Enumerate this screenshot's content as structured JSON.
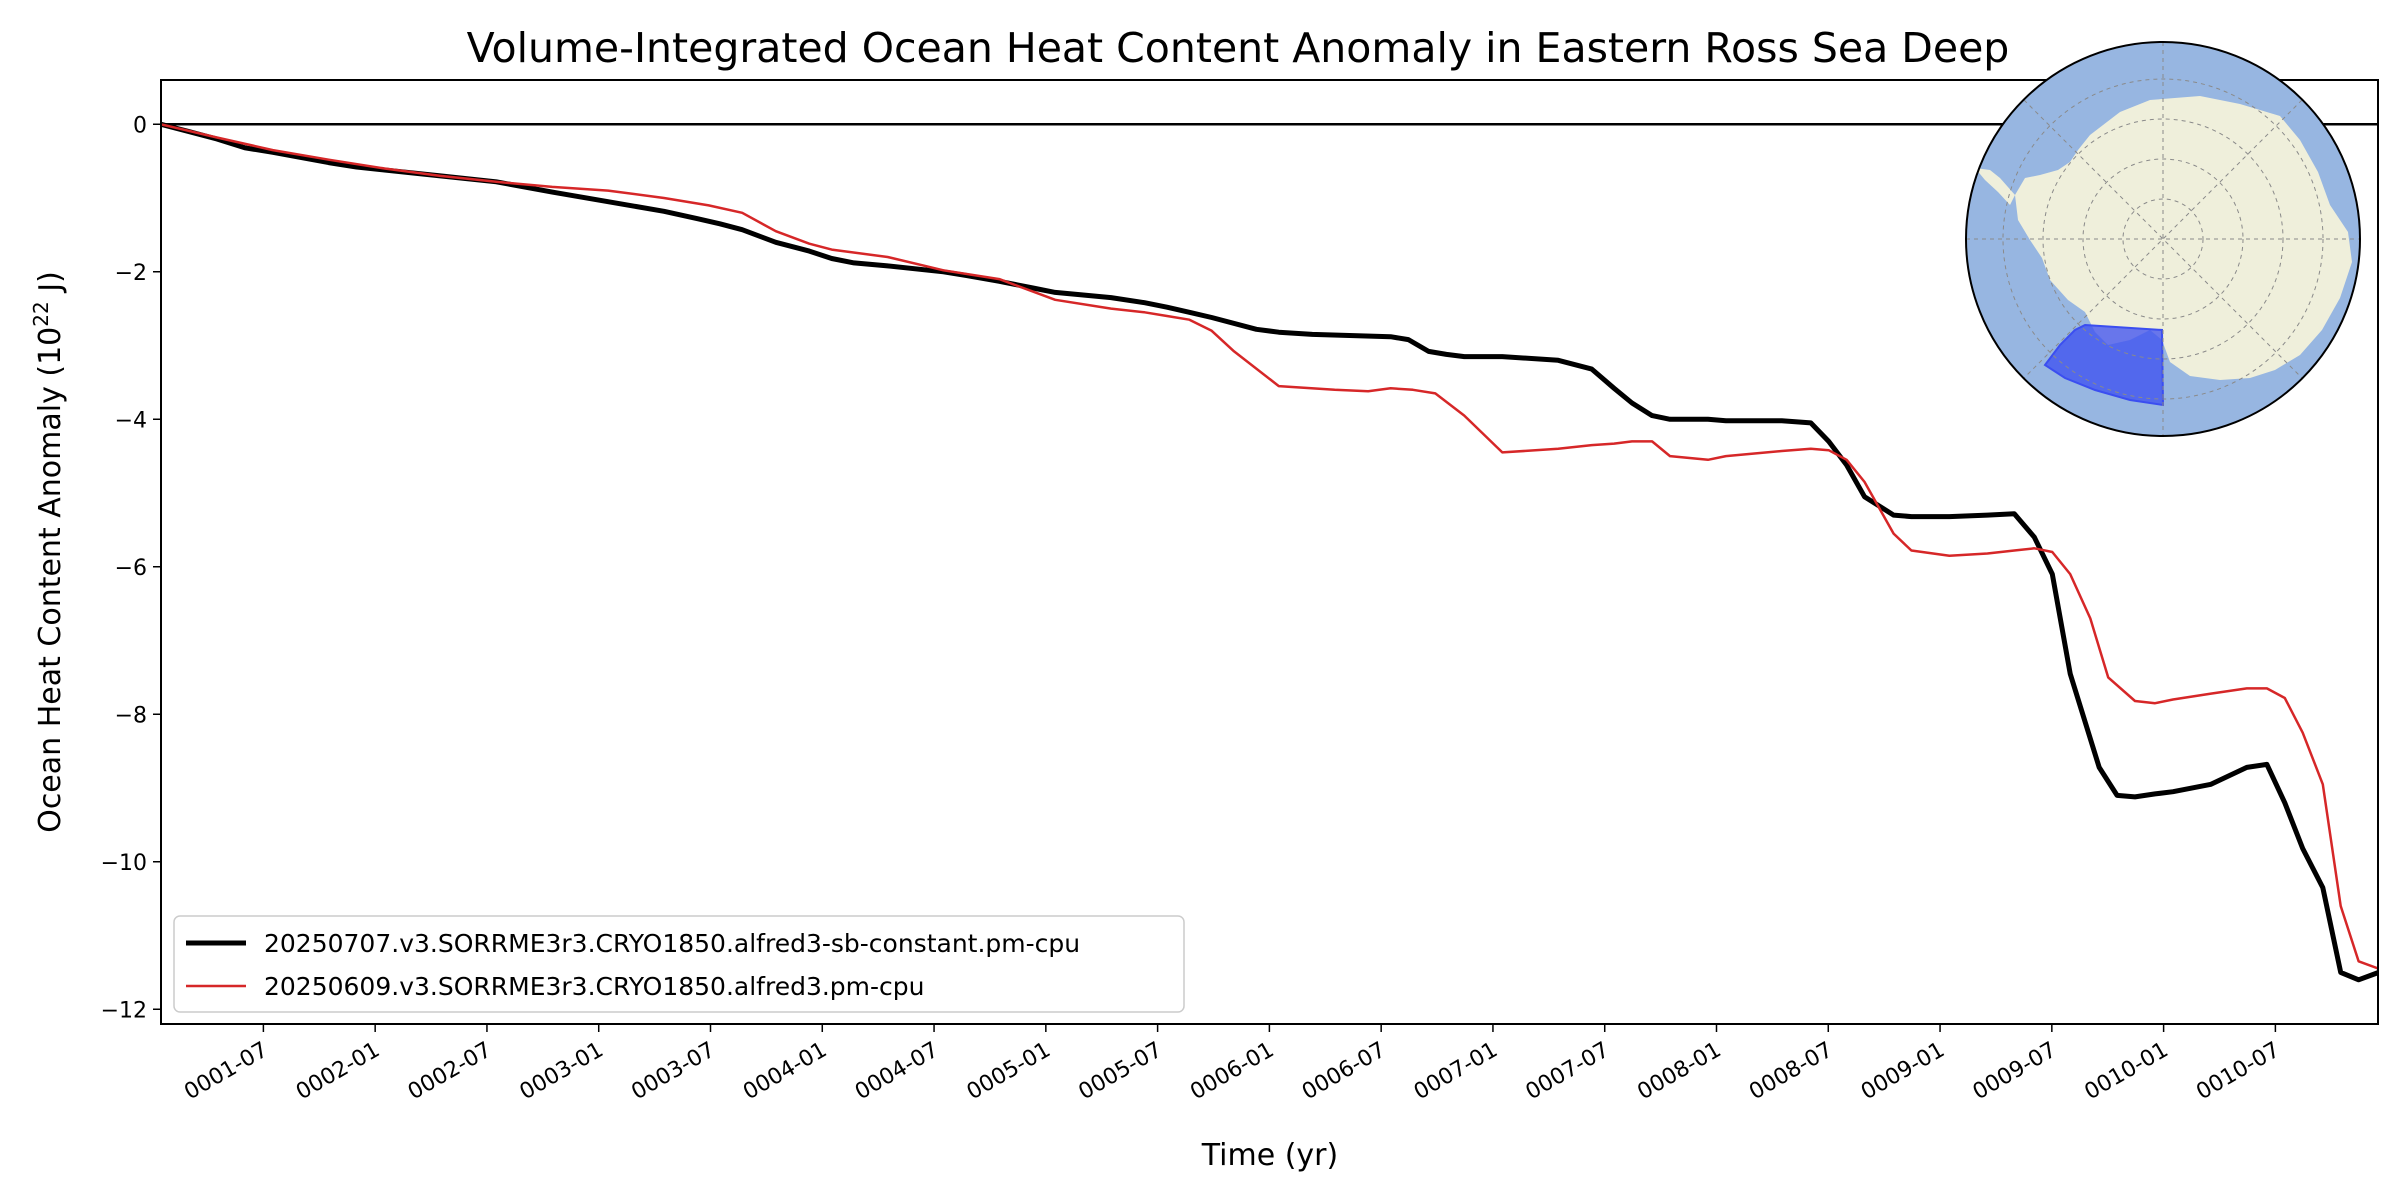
{
  "chart_data": {
    "type": "line",
    "title": "Volume-Integrated Ocean Heat Content Anomaly in Eastern Ross Sea Deep",
    "xlabel": "Time (yr)",
    "ylabel_prefix": "Ocean Heat Content Anomaly (10",
    "ylabel_exponent": "22",
    "ylabel_suffix": " J)",
    "xlim": [
      0.0,
      9.917
    ],
    "ylim": [
      -12.2,
      0.6
    ],
    "x_units": "years since 0001-01",
    "x_ticks": [
      {
        "label": "0001-07",
        "value": 0.458
      },
      {
        "label": "0002-01",
        "value": 0.958
      },
      {
        "label": "0002-07",
        "value": 1.458
      },
      {
        "label": "0003-01",
        "value": 1.958
      },
      {
        "label": "0003-07",
        "value": 2.458
      },
      {
        "label": "0004-01",
        "value": 2.958
      },
      {
        "label": "0004-07",
        "value": 3.458
      },
      {
        "label": "0005-01",
        "value": 3.958
      },
      {
        "label": "0005-07",
        "value": 4.458
      },
      {
        "label": "0006-01",
        "value": 4.958
      },
      {
        "label": "0006-07",
        "value": 5.458
      },
      {
        "label": "0007-01",
        "value": 5.958
      },
      {
        "label": "0007-07",
        "value": 6.458
      },
      {
        "label": "0008-01",
        "value": 6.958
      },
      {
        "label": "0008-07",
        "value": 7.458
      },
      {
        "label": "0009-01",
        "value": 7.958
      },
      {
        "label": "0009-07",
        "value": 8.458
      },
      {
        "label": "0010-01",
        "value": 8.958
      },
      {
        "label": "0010-07",
        "value": 9.458
      }
    ],
    "y_ticks": [
      {
        "label": "0",
        "value": 0
      },
      {
        "label": "−2",
        "value": -2
      },
      {
        "label": "−4",
        "value": -4
      },
      {
        "label": "−6",
        "value": -6
      },
      {
        "label": "−8",
        "value": -8
      },
      {
        "label": "−10",
        "value": -10
      },
      {
        "label": "−12",
        "value": -12
      }
    ],
    "zero_line": true,
    "grid": false,
    "legend_position": "lower-left",
    "series": [
      {
        "name": "20250707.v3.SORRME3r3.CRYO1850.alfred3-sb-constant.pm-cpu",
        "color": "#000000",
        "line_width": 5,
        "x": [
          0.0,
          0.125,
          0.25,
          0.375,
          0.5,
          0.625,
          0.75,
          0.875,
          1.0,
          1.25,
          1.5,
          1.75,
          2.0,
          2.25,
          2.4,
          2.5,
          2.6,
          2.75,
          2.9,
          3.0,
          3.1,
          3.25,
          3.5,
          3.6,
          3.75,
          3.9,
          4.0,
          4.25,
          4.4,
          4.5,
          4.6,
          4.7,
          4.9,
          5.0,
          5.15,
          5.5,
          5.58,
          5.67,
          5.75,
          5.83,
          6.0,
          6.25,
          6.4,
          6.5,
          6.58,
          6.67,
          6.75,
          6.83,
          6.92,
          7.0,
          7.25,
          7.38,
          7.46,
          7.54,
          7.62,
          7.75,
          7.83,
          8.0,
          8.17,
          8.29,
          8.38,
          8.46,
          8.54,
          8.67,
          8.75,
          8.83,
          8.92,
          9.0,
          9.17,
          9.33,
          9.42,
          9.5,
          9.58,
          9.67,
          9.75,
          9.83,
          9.92
        ],
        "y": [
          0,
          -0.1,
          -0.2,
          -0.32,
          -0.38,
          -0.45,
          -0.52,
          -0.58,
          -0.62,
          -0.7,
          -0.78,
          -0.92,
          -1.05,
          -1.18,
          -1.28,
          -1.35,
          -1.43,
          -1.6,
          -1.72,
          -1.82,
          -1.88,
          -1.92,
          -2.0,
          -2.05,
          -2.13,
          -2.22,
          -2.28,
          -2.35,
          -2.42,
          -2.48,
          -2.55,
          -2.62,
          -2.78,
          -2.82,
          -2.85,
          -2.88,
          -2.92,
          -3.08,
          -3.12,
          -3.15,
          -3.15,
          -3.2,
          -3.32,
          -3.58,
          -3.78,
          -3.95,
          -4.0,
          -4.0,
          -4.0,
          -4.02,
          -4.02,
          -4.05,
          -4.3,
          -4.62,
          -5.05,
          -5.3,
          -5.32,
          -5.32,
          -5.3,
          -5.28,
          -5.6,
          -6.1,
          -7.45,
          -8.72,
          -9.1,
          -9.12,
          -9.08,
          -9.05,
          -8.95,
          -8.72,
          -8.68,
          -9.2,
          -9.82,
          -10.35,
          -11.5,
          -11.6,
          -11.5
        ]
      },
      {
        "name": "20250609.v3.SORRME3r3.CRYO1850.alfred3.pm-cpu",
        "color": "#d62728",
        "line_width": 2.5,
        "x": [
          0.0,
          0.25,
          0.5,
          0.75,
          1.0,
          1.25,
          1.5,
          1.75,
          2.0,
          2.25,
          2.45,
          2.6,
          2.75,
          2.9,
          3.0,
          3.25,
          3.5,
          3.75,
          4.0,
          4.25,
          4.4,
          4.5,
          4.6,
          4.7,
          4.8,
          5.0,
          5.25,
          5.4,
          5.5,
          5.6,
          5.7,
          5.83,
          6.0,
          6.25,
          6.4,
          6.5,
          6.58,
          6.67,
          6.75,
          6.92,
          7.0,
          7.25,
          7.38,
          7.46,
          7.54,
          7.62,
          7.75,
          7.83,
          8.0,
          8.17,
          8.29,
          8.38,
          8.46,
          8.54,
          8.63,
          8.71,
          8.83,
          8.92,
          9.0,
          9.17,
          9.33,
          9.42,
          9.5,
          9.58,
          9.67,
          9.75,
          9.83,
          9.92
        ],
        "y": [
          0,
          -0.18,
          -0.35,
          -0.48,
          -0.6,
          -0.7,
          -0.78,
          -0.85,
          -0.9,
          -1.0,
          -1.1,
          -1.2,
          -1.45,
          -1.62,
          -1.7,
          -1.8,
          -1.98,
          -2.1,
          -2.38,
          -2.5,
          -2.55,
          -2.6,
          -2.65,
          -2.8,
          -3.08,
          -3.55,
          -3.6,
          -3.62,
          -3.58,
          -3.6,
          -3.65,
          -3.95,
          -4.45,
          -4.4,
          -4.35,
          -4.33,
          -4.3,
          -4.3,
          -4.5,
          -4.55,
          -4.5,
          -4.43,
          -4.4,
          -4.42,
          -4.55,
          -4.85,
          -5.55,
          -5.78,
          -5.85,
          -5.82,
          -5.78,
          -5.75,
          -5.8,
          -6.1,
          -6.7,
          -7.5,
          -7.82,
          -7.85,
          -7.8,
          -7.72,
          -7.65,
          -7.65,
          -7.78,
          -8.25,
          -8.95,
          -10.6,
          -11.35,
          -11.45
        ]
      }
    ]
  },
  "inset_map": {
    "name": "antarctica-region-map",
    "ocean_color": "#97b6e1",
    "land_color": "#efefdb",
    "region_color": "#3b4ef0"
  }
}
